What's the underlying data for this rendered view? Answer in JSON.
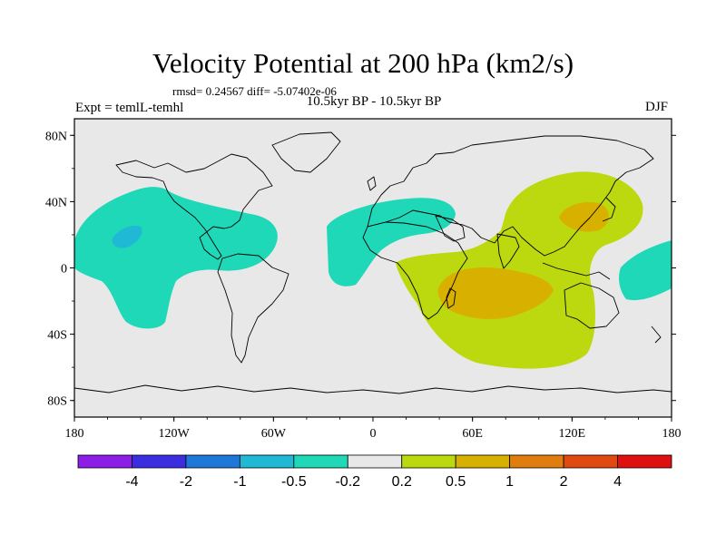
{
  "title": "Velocity Potential at 200 hPa (km2/s)",
  "stats": "rmsd= 0.24567 diff= -5.07402e-06",
  "experiment": "Expt = temlL-temhl",
  "period": "10.5kyr BP - 10.5kyr BP",
  "season": "DJF",
  "map": {
    "projection": "cylindrical equidistant",
    "lon_range": [
      -180,
      180
    ],
    "lat_range": [
      -90,
      90
    ],
    "lon_ticks": [
      "180",
      "120W",
      "60W",
      "0",
      "60E",
      "120E",
      "180"
    ],
    "lat_ticks": [
      "80N",
      "40N",
      "0",
      "40S",
      "80S"
    ],
    "background_color": "#e8e8e8",
    "coastline_color": "#000000"
  },
  "colorbar": {
    "colors": [
      "#8c1fe5",
      "#3a2ee0",
      "#1d78d8",
      "#1fb9d6",
      "#1fd8b8",
      "#e8e8e8",
      "#bcd80f",
      "#d8b000",
      "#df7d0f",
      "#e04a10",
      "#e01010"
    ],
    "labels": [
      "-4",
      "-2",
      "-1",
      "-0.5",
      "-0.2",
      "0.2",
      "0.5",
      "1",
      "2",
      "4"
    ]
  }
}
